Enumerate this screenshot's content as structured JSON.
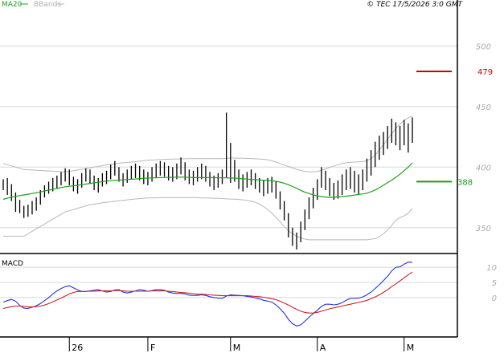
{
  "header": {
    "legend_ma": "MA20",
    "legend_bb": "BBands",
    "copyright": "© TEC 17/5/2026 3:0 GMT"
  },
  "colors": {
    "price": "#000000",
    "ma": "#1aa31a",
    "bbands": "#b8b8b8",
    "macd": "#2233dd",
    "signal": "#cc2222",
    "grid": "#d8d8d8",
    "label": "#aaaaaa",
    "marker_resist": "#cc0000",
    "marker_support": "#1a9a1a"
  },
  "markers": {
    "resistance": {
      "value": 479,
      "label": "479"
    },
    "support": {
      "value": 388,
      "label": "388"
    }
  },
  "macd_panel": {
    "title": "MACD",
    "ticks": [
      {
        "v": 10,
        "label": "10"
      },
      {
        "v": 5,
        "label": "5"
      },
      {
        "v": 0,
        "label": "0"
      }
    ]
  },
  "chart_data": {
    "type": "ohlc",
    "price_axis": {
      "ylim": [
        330,
        530
      ],
      "ticks": [
        350,
        400,
        450,
        500
      ]
    },
    "x_ticks": [
      {
        "index": 16,
        "label": "26"
      },
      {
        "index": 35,
        "label": "F"
      },
      {
        "index": 55,
        "label": "M"
      },
      {
        "index": 76,
        "label": "A"
      },
      {
        "index": 97,
        "label": "M"
      }
    ],
    "bars": [
      [
        390,
        381
      ],
      [
        391,
        377
      ],
      [
        386,
        372
      ],
      [
        379,
        363
      ],
      [
        373,
        362
      ],
      [
        368,
        358
      ],
      [
        369,
        359
      ],
      [
        372,
        361
      ],
      [
        375,
        364
      ],
      [
        381,
        369
      ],
      [
        385,
        375
      ],
      [
        388,
        378
      ],
      [
        391,
        380
      ],
      [
        393,
        382
      ],
      [
        396,
        385
      ],
      [
        399,
        388
      ],
      [
        398,
        385
      ],
      [
        392,
        380
      ],
      [
        390,
        378
      ],
      [
        395,
        383
      ],
      [
        399,
        388
      ],
      [
        398,
        386
      ],
      [
        393,
        381
      ],
      [
        391,
        379
      ],
      [
        395,
        384
      ],
      [
        397,
        386
      ],
      [
        402,
        390
      ],
      [
        405,
        393
      ],
      [
        400,
        388
      ],
      [
        395,
        384
      ],
      [
        398,
        387
      ],
      [
        401,
        390
      ],
      [
        403,
        391
      ],
      [
        401,
        389
      ],
      [
        398,
        386
      ],
      [
        396,
        385
      ],
      [
        400,
        388
      ],
      [
        403,
        391
      ],
      [
        405,
        393
      ],
      [
        404,
        392
      ],
      [
        401,
        389
      ],
      [
        400,
        388
      ],
      [
        403,
        390
      ],
      [
        408,
        394
      ],
      [
        404,
        389
      ],
      [
        398,
        386
      ],
      [
        397,
        385
      ],
      [
        400,
        388
      ],
      [
        403,
        390
      ],
      [
        401,
        388
      ],
      [
        396,
        384
      ],
      [
        393,
        381
      ],
      [
        395,
        383
      ],
      [
        398,
        386
      ],
      [
        445,
        391
      ],
      [
        420,
        387
      ],
      [
        406,
        388
      ],
      [
        398,
        382
      ],
      [
        394,
        380
      ],
      [
        396,
        383
      ],
      [
        398,
        385
      ],
      [
        395,
        382
      ],
      [
        391,
        379
      ],
      [
        389,
        376
      ],
      [
        391,
        378
      ],
      [
        392,
        379
      ],
      [
        388,
        374
      ],
      [
        380,
        365
      ],
      [
        372,
        356
      ],
      [
        362,
        342
      ],
      [
        350,
        335
      ],
      [
        346,
        332
      ],
      [
        355,
        338
      ],
      [
        365,
        348
      ],
      [
        375,
        357
      ],
      [
        383,
        366
      ],
      [
        390,
        373
      ],
      [
        400,
        383
      ],
      [
        397,
        381
      ],
      [
        391,
        376
      ],
      [
        387,
        373
      ],
      [
        389,
        374
      ],
      [
        394,
        377
      ],
      [
        398,
        381
      ],
      [
        400,
        382
      ],
      [
        397,
        379
      ],
      [
        394,
        377
      ],
      [
        398,
        381
      ],
      [
        407,
        388
      ],
      [
        414,
        393
      ],
      [
        421,
        400
      ],
      [
        426,
        406
      ],
      [
        429,
        410
      ],
      [
        434,
        415
      ],
      [
        440,
        420
      ],
      [
        437,
        418
      ],
      [
        434,
        414
      ],
      [
        439,
        418
      ],
      [
        436,
        412
      ],
      [
        441,
        420
      ]
    ],
    "ma20": [
      373.4,
      374.4,
      375.2,
      375.9,
      376.5,
      377.0,
      377.6,
      378.2,
      378.8,
      379.5,
      380.3,
      381.0,
      381.7,
      382.4,
      383.1,
      383.8,
      384.2,
      384.6,
      385.0,
      385.5,
      386.0,
      386.5,
      387.0,
      387.5,
      388.0,
      388.4,
      388.8,
      389.1,
      389.3,
      389.5,
      389.8,
      390.0,
      390.2,
      390.5,
      390.8,
      390.9,
      391.1,
      391.2,
      391.3,
      391.4,
      391.5,
      391.6,
      391.7,
      391.8,
      391.7,
      391.5,
      391.4,
      391.3,
      391.3,
      391.3,
      391.3,
      391.3,
      391.2,
      391.1,
      391.2,
      391.0,
      390.9,
      390.7,
      390.4,
      390.1,
      389.8,
      389.6,
      389.4,
      389.2,
      389.0,
      388.7,
      388.3,
      387.6,
      386.7,
      385.5,
      384.0,
      382.5,
      380.8,
      379.3,
      378.2,
      377.1,
      376.2,
      375.7,
      375.3,
      375.0,
      375.1,
      375.4,
      375.7,
      376.0,
      376.4,
      376.9,
      377.4,
      377.9,
      378.5,
      379.7,
      381.1,
      383.0,
      385.0,
      387.2,
      389.3,
      391.6,
      394.1,
      397.0,
      400.0,
      403.6
    ],
    "bb_upper": [
      403,
      402,
      401,
      400,
      399,
      398,
      397.8,
      397.6,
      397.4,
      397.2,
      397.0,
      396.8,
      396.6,
      396.4,
      396.2,
      396.0,
      396.5,
      397.0,
      397.6,
      398.2,
      398.8,
      399.4,
      400.0,
      400.6,
      401.2,
      401.8,
      402.4,
      402.8,
      403.2,
      403.6,
      403.9,
      404.2,
      404.5,
      404.9,
      405.3,
      405.6,
      405.8,
      406.0,
      406.2,
      406.4,
      406.5,
      406.6,
      406.7,
      406.8,
      406.9,
      407.0,
      407.0,
      407.0,
      407.0,
      407.0,
      407.0,
      407.0,
      407.0,
      407.0,
      407.3,
      407.5,
      407.5,
      407.4,
      407.3,
      407.2,
      407.1,
      406.9,
      406.7,
      406.5,
      406.0,
      405.2,
      404.2,
      403.0,
      401.8,
      400.5,
      399.3,
      398.2,
      397.2,
      396.5,
      396.1,
      396.0,
      396.4,
      397.3,
      398.5,
      399.8,
      401.0,
      402.0,
      402.9,
      403.6,
      404.0,
      404.2,
      404.4,
      404.6,
      405.2,
      407.0,
      410.0,
      414.0,
      418.5,
      423.0,
      427.5,
      432.0,
      435.5,
      438.5,
      440.7,
      442.0
    ],
    "bb_lower": [
      343,
      343,
      343,
      343,
      343,
      343,
      345.0,
      347.0,
      349.0,
      351.0,
      353.0,
      355.0,
      357.0,
      359.0,
      361.0,
      363.0,
      364.0,
      365.0,
      366.0,
      367.0,
      368.0,
      369.0,
      369.5,
      370.0,
      370.5,
      371.0,
      371.4,
      371.8,
      372.2,
      372.6,
      373.0,
      373.4,
      373.7,
      374.0,
      374.3,
      374.5,
      374.6,
      374.7,
      374.8,
      374.8,
      374.8,
      374.8,
      374.8,
      374.8,
      374.8,
      374.8,
      374.8,
      374.7,
      374.6,
      374.5,
      374.4,
      374.3,
      374.2,
      374.1,
      373.8,
      373.6,
      373.5,
      373.3,
      373.0,
      372.6,
      372.0,
      371.0,
      369.5,
      367.5,
      365.0,
      362.0,
      358.5,
      355.0,
      351.0,
      347.5,
      345.0,
      343.0,
      341.5,
      340.6,
      340.0,
      340.0,
      340.0,
      340.0,
      340.0,
      340.0,
      340.0,
      340.0,
      340.0,
      340.0,
      340.0,
      340.0,
      340.0,
      340.0,
      340.0,
      340.5,
      341.0,
      342.5,
      345.0,
      348.0,
      352.0,
      356.0,
      358.5,
      359.7,
      362.0,
      366.0
    ],
    "macd": [
      -1.5,
      -1.0,
      -0.6,
      -1.2,
      -2.6,
      -3.5,
      -3.6,
      -3.2,
      -2.7,
      -2.0,
      -1.0,
      0.0,
      1.2,
      2.2,
      3.0,
      3.6,
      3.9,
      3.2,
      2.5,
      2.0,
      2.0,
      2.2,
      2.4,
      2.6,
      2.2,
      1.8,
      2.0,
      2.5,
      2.6,
      1.8,
      1.5,
      1.8,
      2.2,
      2.6,
      2.4,
      2.1,
      2.3,
      2.6,
      2.6,
      2.4,
      1.8,
      1.5,
      1.3,
      1.4,
      1.2,
      0.8,
      0.7,
      0.7,
      0.9,
      0.7,
      0.3,
      0.0,
      -0.2,
      -0.3,
      0.5,
      0.9,
      0.8,
      0.7,
      0.6,
      0.4,
      0.2,
      -0.1,
      -0.4,
      -0.9,
      -1.2,
      -1.5,
      -2.4,
      -3.7,
      -5.2,
      -7.2,
      -8.6,
      -9.4,
      -9.0,
      -7.8,
      -6.5,
      -5.3,
      -4.2,
      -2.9,
      -2.2,
      -2.2,
      -2.4,
      -2.2,
      -1.7,
      -0.9,
      -0.3,
      -0.3,
      -0.2,
      0.2,
      0.9,
      1.8,
      3.0,
      4.2,
      5.6,
      7.0,
      8.8,
      10.0,
      10.1,
      11.0,
      11.7,
      11.6
    ],
    "signal": [
      -3.6,
      -3.3,
      -3.0,
      -2.8,
      -2.8,
      -2.9,
      -3.1,
      -3.1,
      -3.0,
      -2.8,
      -2.5,
      -2.0,
      -1.4,
      -0.8,
      -0.2,
      0.5,
      1.2,
      1.7,
      2.0,
      2.0,
      2.0,
      2.1,
      2.1,
      2.2,
      2.2,
      2.2,
      2.2,
      2.3,
      2.3,
      2.2,
      2.1,
      2.1,
      2.1,
      2.1,
      2.1,
      2.1,
      2.2,
      2.2,
      2.2,
      2.2,
      2.1,
      2.0,
      1.8,
      1.7,
      1.6,
      1.4,
      1.3,
      1.1,
      1.1,
      1.0,
      0.9,
      0.8,
      0.7,
      0.6,
      0.6,
      0.6,
      0.6,
      0.6,
      0.6,
      0.6,
      0.5,
      0.4,
      0.3,
      0.1,
      -0.1,
      -0.4,
      -0.7,
      -1.2,
      -1.8,
      -2.5,
      -3.2,
      -3.9,
      -4.5,
      -4.9,
      -5.1,
      -5.1,
      -4.9,
      -4.5,
      -4.1,
      -3.7,
      -3.4,
      -3.1,
      -2.8,
      -2.5,
      -2.2,
      -1.9,
      -1.6,
      -1.3,
      -0.9,
      -0.4,
      0.2,
      0.9,
      1.7,
      2.6,
      3.6,
      4.5,
      5.5,
      6.5,
      7.5,
      8.4
    ],
    "macd_ylim": [
      -13,
      14
    ]
  }
}
